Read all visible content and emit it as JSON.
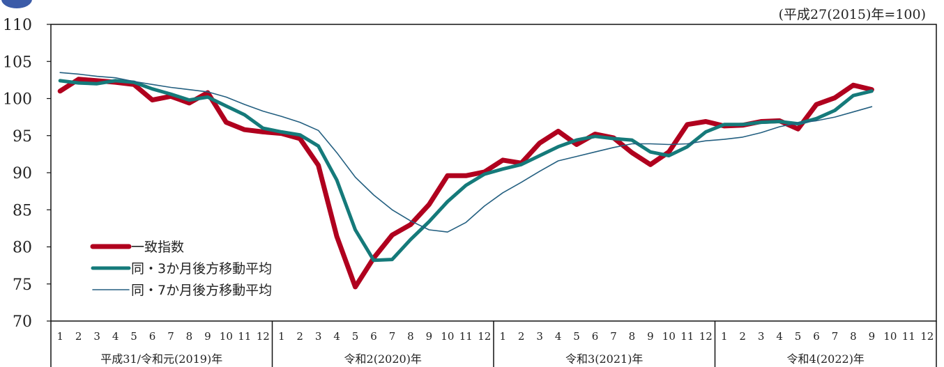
{
  "unit_note": "(平成27(2015)年=100)",
  "chart_data": {
    "type": "line",
    "ylim": [
      70,
      110
    ],
    "yticks": [
      70,
      75,
      80,
      85,
      90,
      95,
      100,
      105,
      110
    ],
    "months": [
      "1",
      "2",
      "3",
      "4",
      "5",
      "6",
      "7",
      "8",
      "9",
      "10",
      "11",
      "12"
    ],
    "years": [
      "平成31/令和元(2019)年",
      "令和2(2020)年",
      "令和3(2021)年",
      "令和4(2022)年"
    ],
    "grid": false,
    "legend_position": "bottom-left",
    "series": [
      {
        "name": "一致指数",
        "color": "#b0001e",
        "width": 7,
        "values": [
          101.0,
          102.6,
          102.4,
          102.2,
          101.9,
          99.8,
          100.3,
          99.4,
          100.8,
          96.8,
          95.8,
          95.5,
          95.3,
          94.6,
          91.0,
          81.4,
          74.6,
          78.5,
          81.6,
          83.0,
          85.7,
          89.6,
          89.6,
          90.1,
          91.7,
          91.3,
          94.0,
          95.6,
          93.8,
          95.2,
          94.7,
          92.7,
          91.1,
          92.8,
          96.5,
          96.9,
          96.3,
          96.4,
          96.9,
          97.0,
          95.9,
          99.2,
          100.1,
          101.8,
          101.2
        ]
      },
      {
        "name": "同・3か月後方移動平均",
        "color": "#157a7a",
        "width": 5,
        "values": [
          102.4,
          102.1,
          102.0,
          102.4,
          102.2,
          101.3,
          100.6,
          99.8,
          100.2,
          99.0,
          97.8,
          96.0,
          95.5,
          95.1,
          93.6,
          89.0,
          82.3,
          78.2,
          78.3,
          81.0,
          83.4,
          86.1,
          88.3,
          89.8,
          90.5,
          91.1,
          92.3,
          93.5,
          94.4,
          94.9,
          94.6,
          94.4,
          92.8,
          92.3,
          93.5,
          95.5,
          96.5,
          96.5,
          96.8,
          96.9,
          96.6,
          97.3,
          98.4,
          100.4,
          101.0
        ]
      },
      {
        "name": "同・7か月後方移動平均",
        "color": "#235f80",
        "width": 1.6,
        "values": [
          103.5,
          103.3,
          103.0,
          102.8,
          102.3,
          101.9,
          101.5,
          101.2,
          100.9,
          100.2,
          99.2,
          98.3,
          97.6,
          96.8,
          95.7,
          92.7,
          89.4,
          87.0,
          85.0,
          83.5,
          82.3,
          82.0,
          83.3,
          85.5,
          87.3,
          88.7,
          90.2,
          91.6,
          92.2,
          92.8,
          93.4,
          93.9,
          93.9,
          93.8,
          93.9,
          94.3,
          94.5,
          94.8,
          95.4,
          96.2,
          96.7,
          97.0,
          97.5,
          98.2,
          98.9
        ]
      }
    ]
  }
}
